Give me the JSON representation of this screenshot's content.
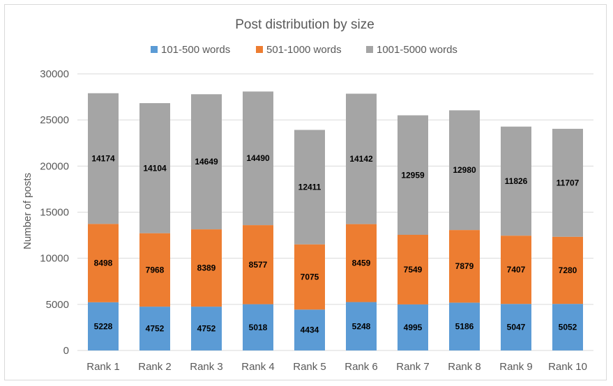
{
  "chart_data": {
    "type": "bar",
    "stacked": true,
    "title": "Post distribution by size",
    "xlabel": "",
    "ylabel": "Number of posts",
    "ylim": [
      0,
      30000
    ],
    "yticks": [
      0,
      5000,
      10000,
      15000,
      20000,
      25000,
      30000
    ],
    "grid": true,
    "legend_position": "top",
    "categories": [
      "Rank 1",
      "Rank 2",
      "Rank 3",
      "Rank 4",
      "Rank 5",
      "Rank 6",
      "Rank 7",
      "Rank 8",
      "Rank 9",
      "Rank 10"
    ],
    "series": [
      {
        "name": "101-500 words",
        "color": "#5b9bd5",
        "values": [
          5228,
          4752,
          4752,
          5018,
          4434,
          5248,
          4995,
          5186,
          5047,
          5052
        ]
      },
      {
        "name": "501-1000 words",
        "color": "#ed7d31",
        "values": [
          8498,
          7968,
          8389,
          8577,
          7075,
          8459,
          7549,
          7879,
          7407,
          7280
        ]
      },
      {
        "name": "1001-5000 words",
        "color": "#a5a5a5",
        "values": [
          14174,
          14104,
          14649,
          14490,
          12411,
          14142,
          12959,
          12980,
          11826,
          11707
        ]
      }
    ]
  }
}
